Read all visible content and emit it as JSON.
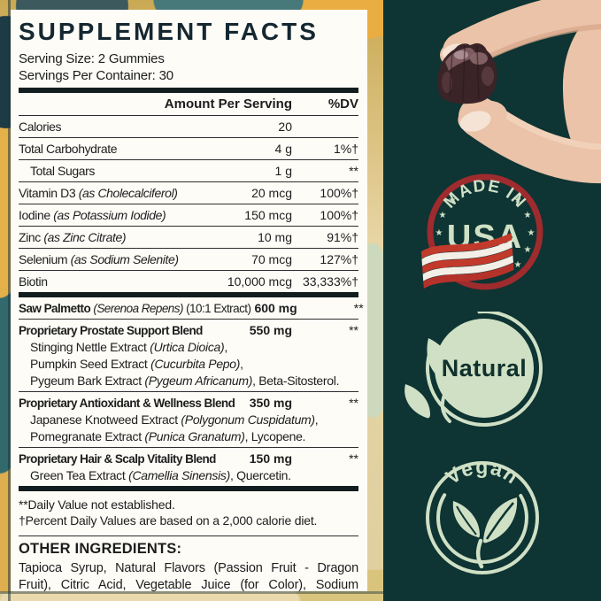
{
  "supplement_panel": {
    "title": "SUPPLEMENT FACTS",
    "serving_size": "Serving Size: 2 Gummies",
    "servings_per_container": "Servings Per Container: 30",
    "columns": {
      "amount": "Amount Per Serving",
      "dv": "%DV"
    },
    "rows": [
      {
        "name": [
          {
            "t": "Calories"
          }
        ],
        "amount": "20",
        "dv": "",
        "div": "thin"
      },
      {
        "name": [
          {
            "t": "Total Carbohydrate"
          }
        ],
        "amount": "4 g",
        "dv": "1%†",
        "div": "thin"
      },
      {
        "name": [
          {
            "t": "Total Sugars"
          }
        ],
        "indent": true,
        "amount": "1 g",
        "dv": "**",
        "div": "thin"
      },
      {
        "name": [
          {
            "t": "Vitamin D3 "
          },
          {
            "t": "(as Cholecalciferol)",
            "i": true
          }
        ],
        "amount": "20 mcg",
        "dv": "100%†",
        "div": "thin"
      },
      {
        "name": [
          {
            "t": "Iodine "
          },
          {
            "t": "(as Potassium Iodide)",
            "i": true
          }
        ],
        "amount": "150 mcg",
        "dv": "100%†",
        "div": "thin"
      },
      {
        "name": [
          {
            "t": "Zinc "
          },
          {
            "t": "(as Zinc Citrate)",
            "i": true
          }
        ],
        "amount": "10 mg",
        "dv": "91%†",
        "div": "thin"
      },
      {
        "name": [
          {
            "t": "Selenium "
          },
          {
            "t": "(as Sodium Selenite)",
            "i": true
          }
        ],
        "amount": "70 mcg",
        "dv": "127%†",
        "div": "thin"
      },
      {
        "name": [
          {
            "t": "Biotin"
          }
        ],
        "amount": "10,000 mcg",
        "dv": "33,333%†",
        "div": "thick"
      },
      {
        "name": [
          {
            "t": "Saw Palmetto ",
            "b": true
          },
          {
            "t": "(Serenoa Repens)",
            "i": true
          },
          {
            "t": " (10:1 Extract)"
          }
        ],
        "tight": true,
        "amount": "600 mg",
        "amount_bold": true,
        "dv": "**",
        "div": "thin"
      },
      {
        "name": [
          {
            "t": "Proprietary Prostate Support Blend",
            "b": true
          }
        ],
        "tight": true,
        "amount": "550 mg",
        "amount_bold": true,
        "dv": "**",
        "div": "thin",
        "sub": [
          [
            {
              "t": "Stinging Nettle Extract "
            },
            {
              "t": "(Urtica Dioica)",
              "i": true
            },
            {
              "t": ","
            }
          ],
          [
            {
              "t": "Pumpkin Seed Extract "
            },
            {
              "t": "(Cucurbita Pepo)",
              "i": true
            },
            {
              "t": ","
            }
          ],
          [
            {
              "t": "Pygeum Bark Extract "
            },
            {
              "t": "(Pygeum Africanum)",
              "i": true
            },
            {
              "t": ", Beta-Sitosterol."
            }
          ]
        ]
      },
      {
        "name": [
          {
            "t": "Proprietary Antioxidant & Wellness Blend",
            "b": true
          }
        ],
        "tight": true,
        "amount": "350 mg",
        "amount_bold": true,
        "dv": "**",
        "div": "thin",
        "sub": [
          [
            {
              "t": "Japanese Knotweed Extract "
            },
            {
              "t": "(Polygonum Cuspidatum)",
              "i": true
            },
            {
              "t": ","
            }
          ],
          [
            {
              "t": "Pomegranate Extract "
            },
            {
              "t": "(Punica Granatum)",
              "i": true
            },
            {
              "t": ", Lycopene."
            }
          ]
        ]
      },
      {
        "name": [
          {
            "t": "Proprietary Hair & Scalp Vitality Blend",
            "b": true
          }
        ],
        "tight": true,
        "amount": "150 mg",
        "amount_bold": true,
        "dv": "**",
        "div": "thick",
        "sub": [
          [
            {
              "t": "Green Tea Extract "
            },
            {
              "t": "(Camellia Sinensis)",
              "i": true
            },
            {
              "t": ", Quercetin."
            }
          ]
        ]
      }
    ],
    "footnotes": [
      "**Daily Value not established.",
      "†Percent Daily Values are based on a 2,000 calorie diet."
    ],
    "other_ingredients": {
      "heading": "OTHER INGREDIENTS:",
      "body": "Tapioca Syrup, Natural Flavors (Passion Fruit - Dragon Fruit), Citric Acid, Vegetable Juice (for Color), Sodium Citrate, Fractionated Coconut Oil, Carnauba Wax."
    }
  },
  "badges": {
    "made_in_usa": {
      "line1": "MADE IN",
      "line2": "USA",
      "star": "★"
    },
    "natural": {
      "label": "Natural"
    },
    "vegan": {
      "label": "Vegan"
    }
  },
  "colors": {
    "right_panel_teal": "#0e3433",
    "pale_green": "#cfe0c5",
    "badge_ring_red": "#9e2b2e",
    "flag_red": "#c23a2b",
    "panel_background": "#fdfcf7",
    "table_text": "#1d1d1d"
  }
}
